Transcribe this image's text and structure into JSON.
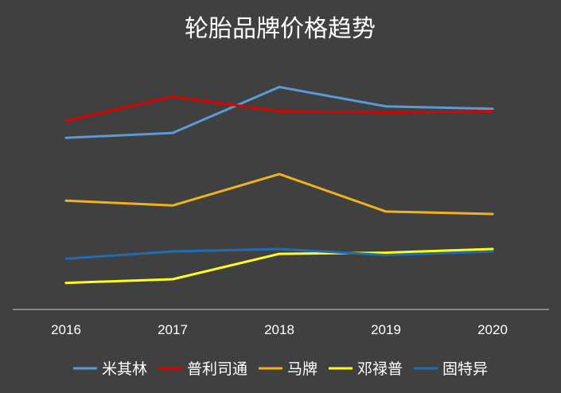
{
  "chart_data": {
    "type": "line",
    "title": "轮胎品牌价格趋势",
    "categories": [
      "2016",
      "2017",
      "2018",
      "2019",
      "2020"
    ],
    "ylim": [
      0,
      100
    ],
    "grid": false,
    "legend_position": "bottom",
    "series": [
      {
        "name": "米其林",
        "color": "#5B9BD5",
        "values": [
          70,
          72,
          91,
          83,
          82
        ]
      },
      {
        "name": "普利司通",
        "color": "#E00000",
        "values": [
          77,
          87,
          81,
          80.5,
          81
        ]
      },
      {
        "name": "马牌",
        "color": "#F0B21C",
        "values": [
          44,
          42,
          55,
          39.5,
          38.5
        ]
      },
      {
        "name": "邓禄普",
        "color": "#FFFF1A",
        "values": [
          10,
          11.5,
          22,
          22.5,
          24
        ]
      },
      {
        "name": "固特异",
        "color": "#1F6CB0",
        "values": [
          20,
          23,
          24,
          21.5,
          23
        ]
      }
    ]
  }
}
